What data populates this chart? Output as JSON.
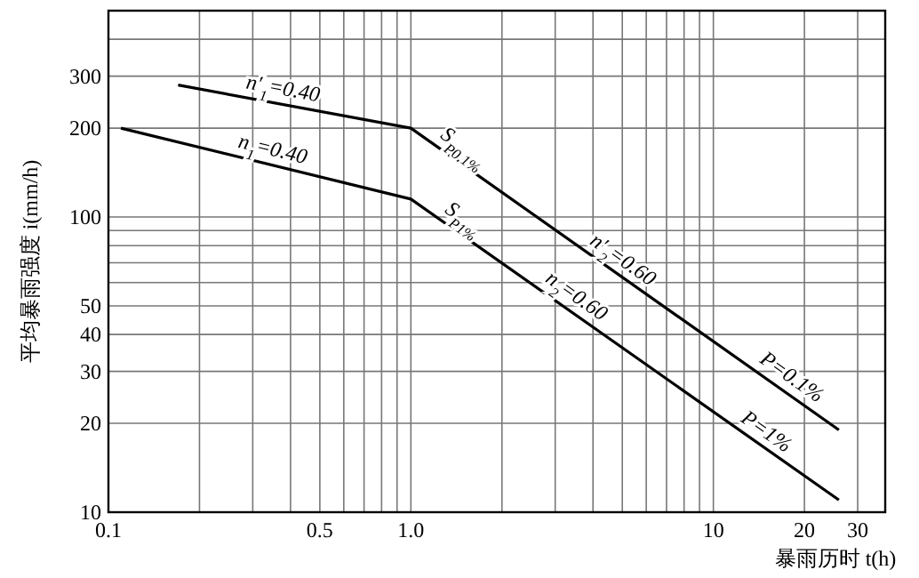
{
  "chart_data": {
    "type": "line",
    "log": "xy",
    "grid": true,
    "xlabel": "暴雨历时 t(h)",
    "ylabel": "平均暴雨强度 i(mm/h)",
    "xlim": [
      0.1,
      37
    ],
    "ylim": [
      10,
      500
    ],
    "xticks": [
      0.1,
      0.5,
      {
        "value": 1,
        "label": "1.0"
      },
      10,
      20,
      30
    ],
    "yticks": [
      10,
      20,
      30,
      40,
      50,
      100,
      200,
      300
    ],
    "series": [
      {
        "color": "#000000",
        "x": [
          0.17,
          1,
          26
        ],
        "values": [
          280,
          200,
          19
        ]
      },
      {
        "color": "#000000",
        "x": [
          0.11,
          1,
          26
        ],
        "values": [
          200,
          115,
          11
        ]
      }
    ],
    "annotations": [
      {
        "text": "n′$_{1}$=0.40",
        "x": 0.37,
        "y": 242
      },
      {
        "text": "n$_{1}$=0.40",
        "x": 0.34,
        "y": 151
      },
      {
        "text": "S$_{P0.1%}$",
        "x": 1.4,
        "y": 157
      },
      {
        "text": "S$_{P1%}$",
        "x": 1.4,
        "y": 90
      },
      {
        "text": "n′$_{2}$=0.60",
        "x": 4.7,
        "y": 65
      },
      {
        "text": "n$_{2}$=0.60",
        "x": 3.3,
        "y": 49
      },
      {
        "text": "P=0.1%",
        "x": 17,
        "y": 26
      },
      {
        "text": "P=1%",
        "x": 14,
        "y": 17
      }
    ]
  }
}
